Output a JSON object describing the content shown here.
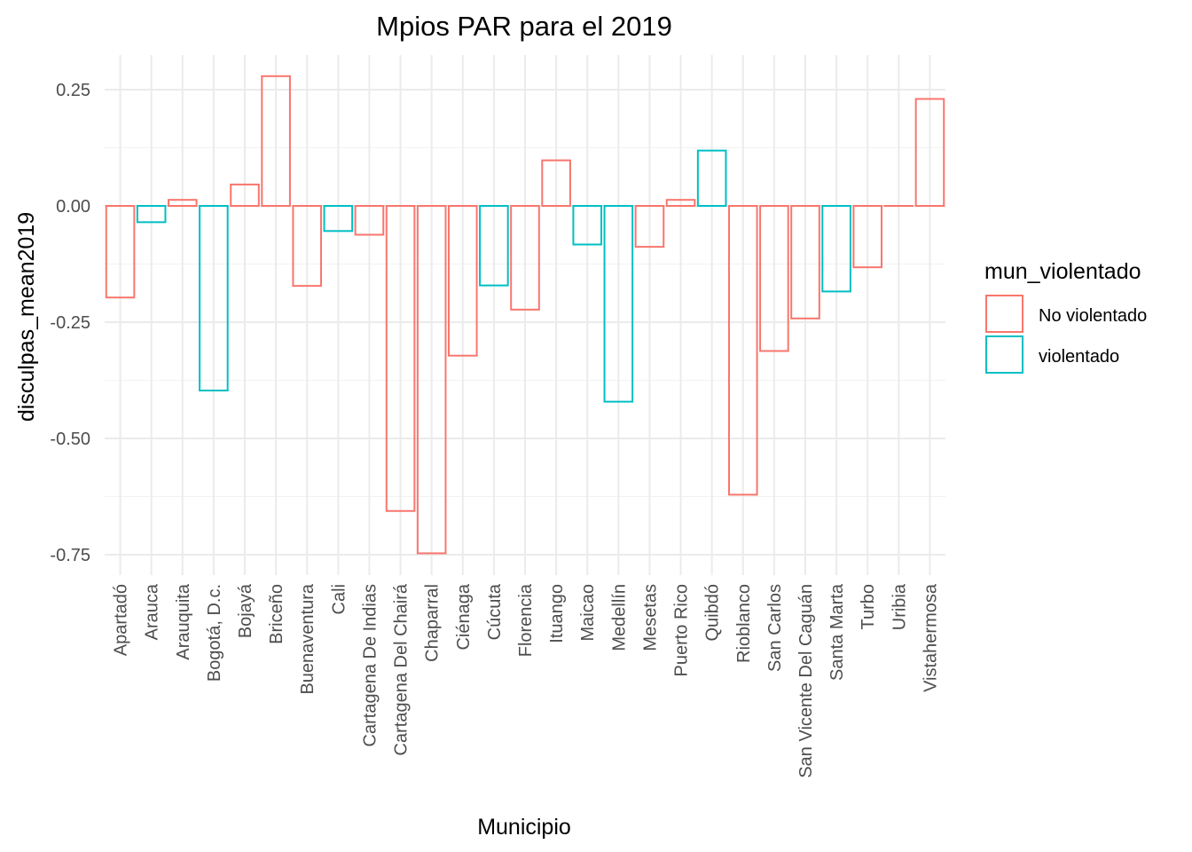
{
  "chart_data": {
    "type": "bar",
    "title": "Mpios PAR para el 2019",
    "xlabel": "Municipio",
    "ylabel": "disculpas_mean2019",
    "ylim": [
      -0.78,
      0.32
    ],
    "yticks": [
      0.25,
      0.0,
      -0.25,
      -0.5,
      -0.75
    ],
    "ytick_labels": [
      "0.25",
      "0.00",
      "-0.25",
      "-0.50",
      "-0.75"
    ],
    "grid": true,
    "legend_position": "right",
    "legend": {
      "title": "mun_violentado",
      "entries": [
        {
          "label": "No violentado",
          "color": "#f8766d"
        },
        {
          "label": "violentado",
          "color": "#00bfc4"
        }
      ]
    },
    "categories": [
      "Apartadó",
      "Arauca",
      "Arauquita",
      "Bogotá, D.c.",
      "Bojayá",
      "Briceño",
      "Buenaventura",
      "Cali",
      "Cartagena De Indias",
      "Cartagena Del Chairá",
      "Chaparral",
      "Ciénaga",
      "Cúcuta",
      "Florencia",
      "Ituango",
      "Maicao",
      "Medellín",
      "Mesetas",
      "Puerto Rico",
      "Quibdó",
      "Rioblanco",
      "San Carlos",
      "San Vicente Del Caguán",
      "Santa Marta",
      "Turbo",
      "Uribia",
      "Vistahermosa"
    ],
    "values": [
      -0.197,
      -0.035,
      0.013,
      -0.397,
      0.046,
      0.279,
      -0.172,
      -0.054,
      -0.062,
      -0.656,
      -0.747,
      -0.322,
      -0.171,
      -0.223,
      0.098,
      -0.083,
      -0.421,
      -0.088,
      0.013,
      0.119,
      -0.621,
      -0.312,
      -0.242,
      -0.184,
      -0.132,
      0.0,
      0.23
    ],
    "groups": [
      "No violentado",
      "violentado",
      "No violentado",
      "violentado",
      "No violentado",
      "No violentado",
      "No violentado",
      "violentado",
      "No violentado",
      "No violentado",
      "No violentado",
      "No violentado",
      "violentado",
      "No violentado",
      "No violentado",
      "violentado",
      "violentado",
      "No violentado",
      "No violentado",
      "violentado",
      "No violentado",
      "No violentado",
      "No violentado",
      "violentado",
      "No violentado",
      "No violentado",
      "No violentado"
    ]
  }
}
